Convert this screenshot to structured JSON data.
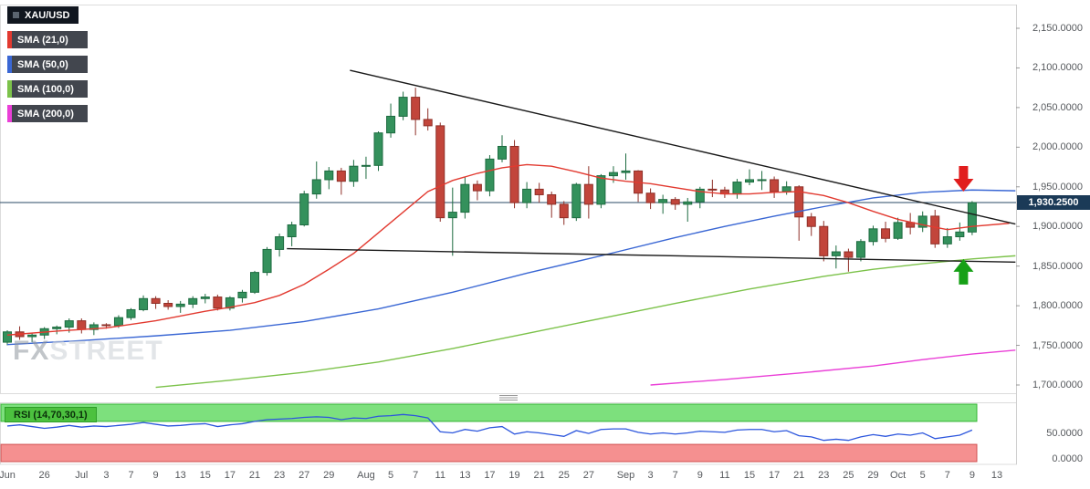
{
  "instrument": {
    "symbol": "XAU/USD"
  },
  "watermark": {
    "part1": "FX",
    "part2": "STREET"
  },
  "price_badge": {
    "value": "1,930.2500",
    "color": "#1b3a57"
  },
  "chart_data": {
    "type": "candlestick",
    "symbol": "XAU/USD",
    "bull_color": "#34915c",
    "bull_border": "#1d6b40",
    "bear_color": "#c2453b",
    "bear_border": "#8e2f27",
    "y_axis": {
      "values": [
        2150,
        2100,
        2050,
        2000,
        1950,
        1900,
        1850,
        1800,
        1750,
        1700
      ],
      "labels": [
        "2,150.0000",
        "2,100.0000",
        "2,050.0000",
        "2,000.0000",
        "1,950.0000",
        "1,900.0000",
        "1,850.0000",
        "1,800.0000",
        "1,750.0000",
        "1,700.0000"
      ]
    },
    "x_ticks": [
      [
        0,
        "Jun"
      ],
      [
        3,
        "26"
      ],
      [
        6,
        "Jul"
      ],
      [
        8,
        "3"
      ],
      [
        10,
        "7"
      ],
      [
        12,
        "9"
      ],
      [
        14,
        "13"
      ],
      [
        16,
        "15"
      ],
      [
        18,
        "17"
      ],
      [
        20,
        "21"
      ],
      [
        22,
        "23"
      ],
      [
        24,
        "27"
      ],
      [
        26,
        "29"
      ],
      [
        29,
        "Aug"
      ],
      [
        31,
        "5"
      ],
      [
        33,
        "7"
      ],
      [
        35,
        "11"
      ],
      [
        37,
        "13"
      ],
      [
        39,
        "17"
      ],
      [
        41,
        "19"
      ],
      [
        43,
        "21"
      ],
      [
        45,
        "25"
      ],
      [
        47,
        "27"
      ],
      [
        50,
        "Sep"
      ],
      [
        52,
        "3"
      ],
      [
        54,
        "7"
      ],
      [
        56,
        "9"
      ],
      [
        58,
        "11"
      ],
      [
        60,
        "15"
      ],
      [
        62,
        "17"
      ],
      [
        64,
        "21"
      ],
      [
        66,
        "23"
      ],
      [
        68,
        "25"
      ],
      [
        70,
        "29"
      ],
      [
        72,
        "Oct"
      ],
      [
        74,
        "5"
      ],
      [
        76,
        "7"
      ],
      [
        78,
        "9"
      ],
      [
        80,
        "13"
      ]
    ],
    "candles": [
      [
        "Jun 23",
        1754,
        1769,
        1750,
        1767
      ],
      [
        "Jun 24",
        1767,
        1774,
        1757,
        1761
      ],
      [
        "Jun 25",
        1761,
        1766,
        1754,
        1763
      ],
      [
        "Jun 26",
        1763,
        1773,
        1758,
        1771
      ],
      [
        "Jun 29",
        1771,
        1775,
        1764,
        1773
      ],
      [
        "Jun 30",
        1773,
        1784,
        1766,
        1781
      ],
      [
        "Jul 1",
        1781,
        1784,
        1765,
        1770
      ],
      [
        "Jul 2",
        1770,
        1779,
        1763,
        1776
      ],
      [
        "Jul 3",
        1776,
        1778,
        1771,
        1775
      ],
      [
        "Jul 6",
        1775,
        1788,
        1772,
        1785
      ],
      [
        "Jul 7",
        1785,
        1797,
        1782,
        1795
      ],
      [
        "Jul 8",
        1795,
        1813,
        1793,
        1809
      ],
      [
        "Jul 9",
        1809,
        1812,
        1796,
        1803
      ],
      [
        "Jul 10",
        1803,
        1807,
        1795,
        1799
      ],
      [
        "Jul 13",
        1799,
        1806,
        1791,
        1802
      ],
      [
        "Jul 14",
        1802,
        1812,
        1797,
        1809
      ],
      [
        "Jul 15",
        1809,
        1815,
        1803,
        1811
      ],
      [
        "Jul 16",
        1811,
        1814,
        1794,
        1797
      ],
      [
        "Jul 17",
        1797,
        1812,
        1794,
        1810
      ],
      [
        "Jul 20",
        1810,
        1820,
        1804,
        1817
      ],
      [
        "Jul 21",
        1817,
        1844,
        1815,
        1842
      ],
      [
        "Jul 22",
        1842,
        1874,
        1838,
        1871
      ],
      [
        "Jul 23",
        1871,
        1891,
        1862,
        1887
      ],
      [
        "Jul 24",
        1887,
        1906,
        1875,
        1902
      ],
      [
        "Jul 27",
        1902,
        1945,
        1900,
        1941
      ],
      [
        "Jul 28",
        1941,
        1982,
        1935,
        1959
      ],
      [
        "Jul 29",
        1959,
        1975,
        1947,
        1970
      ],
      [
        "Jul 30",
        1970,
        1974,
        1940,
        1957
      ],
      [
        "Jul 31",
        1957,
        1984,
        1950,
        1976
      ],
      [
        "Aug 3",
        1976,
        1988,
        1960,
        1977
      ],
      [
        "Aug 4",
        1977,
        2020,
        1970,
        2018
      ],
      [
        "Aug 5",
        2018,
        2055,
        2012,
        2039
      ],
      [
        "Aug 6",
        2039,
        2070,
        2034,
        2063
      ],
      [
        "Aug 7",
        2063,
        2075,
        2015,
        2035
      ],
      [
        "Aug 10",
        2035,
        2049,
        2021,
        2027
      ],
      [
        "Aug 11",
        2027,
        2031,
        1906,
        1911
      ],
      [
        "Aug 12",
        1911,
        1949,
        1863,
        1918
      ],
      [
        "Aug 13",
        1918,
        1962,
        1910,
        1953
      ],
      [
        "Aug 14",
        1953,
        1958,
        1933,
        1945
      ],
      [
        "Aug 17",
        1945,
        1990,
        1938,
        1985
      ],
      [
        "Aug 18",
        1985,
        2015,
        1981,
        2001
      ],
      [
        "Aug 19",
        2001,
        2009,
        1923,
        1930
      ],
      [
        "Aug 20",
        1930,
        1956,
        1923,
        1947
      ],
      [
        "Aug 21",
        1947,
        1955,
        1930,
        1940
      ],
      [
        "Aug 24",
        1940,
        1944,
        1911,
        1928
      ],
      [
        "Aug 25",
        1928,
        1932,
        1902,
        1911
      ],
      [
        "Aug 26",
        1911,
        1955,
        1907,
        1953
      ],
      [
        "Aug 27",
        1953,
        1976,
        1910,
        1928
      ],
      [
        "Aug 28",
        1928,
        1966,
        1923,
        1964
      ],
      [
        "Aug 31",
        1964,
        1976,
        1955,
        1968
      ],
      [
        "Sep 1",
        1968,
        1992,
        1959,
        1970
      ],
      [
        "Sep 2",
        1970,
        1971,
        1931,
        1942
      ],
      [
        "Sep 3",
        1942,
        1948,
        1922,
        1930
      ],
      [
        "Sep 4",
        1930,
        1940,
        1916,
        1934
      ],
      [
        "Sep 7",
        1934,
        1937,
        1921,
        1928
      ],
      [
        "Sep 8",
        1928,
        1936,
        1906,
        1931
      ],
      [
        "Sep 9",
        1931,
        1950,
        1923,
        1947
      ],
      [
        "Sep 10",
        1947,
        1959,
        1937,
        1946
      ],
      [
        "Sep 11",
        1946,
        1950,
        1936,
        1941
      ],
      [
        "Sep 14",
        1941,
        1960,
        1935,
        1956
      ],
      [
        "Sep 15",
        1956,
        1972,
        1952,
        1959
      ],
      [
        "Sep 16",
        1959,
        1970,
        1946,
        1959
      ],
      [
        "Sep 17",
        1959,
        1963,
        1936,
        1944
      ],
      [
        "Sep 18",
        1944,
        1957,
        1940,
        1950
      ],
      [
        "Sep 21",
        1950,
        1952,
        1882,
        1912
      ],
      [
        "Sep 22",
        1912,
        1917,
        1888,
        1900
      ],
      [
        "Sep 23",
        1900,
        1907,
        1856,
        1863
      ],
      [
        "Sep 24",
        1863,
        1876,
        1847,
        1868
      ],
      [
        "Sep 25",
        1868,
        1872,
        1843,
        1861
      ],
      [
        "Sep 28",
        1861,
        1884,
        1856,
        1881
      ],
      [
        "Sep 29",
        1881,
        1901,
        1876,
        1897
      ],
      [
        "Sep 30",
        1897,
        1906,
        1880,
        1885
      ],
      [
        "Oct 1",
        1885,
        1911,
        1883,
        1905
      ],
      [
        "Oct 2",
        1905,
        1917,
        1890,
        1899
      ],
      [
        "Oct 5",
        1899,
        1919,
        1893,
        1913
      ],
      [
        "Oct 6",
        1913,
        1921,
        1873,
        1878
      ],
      [
        "Oct 7",
        1878,
        1898,
        1873,
        1887
      ],
      [
        "Oct 8",
        1887,
        1905,
        1882,
        1893
      ],
      [
        "Oct 9",
        1893,
        1932,
        1889,
        1930
      ]
    ],
    "sma21": {
      "name": "SMA (21,0)",
      "color": "#e23a30",
      "points": [
        [
          0,
          1763
        ],
        [
          4,
          1768
        ],
        [
          8,
          1772
        ],
        [
          12,
          1781
        ],
        [
          16,
          1793
        ],
        [
          18,
          1798
        ],
        [
          20,
          1804
        ],
        [
          22,
          1813
        ],
        [
          24,
          1827
        ],
        [
          26,
          1846
        ],
        [
          28,
          1866
        ],
        [
          30,
          1892
        ],
        [
          32,
          1918
        ],
        [
          34,
          1944
        ],
        [
          36,
          1958
        ],
        [
          38,
          1967
        ],
        [
          40,
          1974
        ],
        [
          42,
          1978
        ],
        [
          44,
          1976
        ],
        [
          46,
          1969
        ],
        [
          48,
          1961
        ],
        [
          50,
          1957
        ],
        [
          52,
          1954
        ],
        [
          54,
          1949
        ],
        [
          56,
          1944
        ],
        [
          58,
          1941
        ],
        [
          60,
          1941
        ],
        [
          62,
          1943
        ],
        [
          64,
          1944
        ],
        [
          66,
          1939
        ],
        [
          68,
          1930
        ],
        [
          70,
          1919
        ],
        [
          72,
          1909
        ],
        [
          74,
          1902
        ],
        [
          76,
          1896
        ],
        [
          78,
          1900
        ],
        [
          81,
          1904
        ]
      ]
    },
    "sma50": {
      "name": "SMA (50,0)",
      "color": "#3a67d4",
      "points": [
        [
          0,
          1751
        ],
        [
          6,
          1756
        ],
        [
          12,
          1762
        ],
        [
          18,
          1769
        ],
        [
          24,
          1780
        ],
        [
          30,
          1796
        ],
        [
          36,
          1817
        ],
        [
          42,
          1841
        ],
        [
          48,
          1863
        ],
        [
          54,
          1886
        ],
        [
          58,
          1900
        ],
        [
          62,
          1913
        ],
        [
          66,
          1925
        ],
        [
          70,
          1936
        ],
        [
          74,
          1943
        ],
        [
          78,
          1946
        ],
        [
          81.5,
          1945
        ]
      ]
    },
    "sma100": {
      "name": "SMA (100,0)",
      "color": "#7cc24a",
      "points": [
        [
          12,
          1697
        ],
        [
          18,
          1706
        ],
        [
          24,
          1716
        ],
        [
          30,
          1729
        ],
        [
          36,
          1746
        ],
        [
          42,
          1765
        ],
        [
          48,
          1784
        ],
        [
          54,
          1803
        ],
        [
          60,
          1821
        ],
        [
          66,
          1837
        ],
        [
          70,
          1846
        ],
        [
          74,
          1853
        ],
        [
          78,
          1859
        ],
        [
          81.5,
          1863
        ]
      ]
    },
    "sma200": {
      "name": "SMA (200,0)",
      "color": "#ea3fd7",
      "points": [
        [
          52,
          1700
        ],
        [
          58,
          1707
        ],
        [
          64,
          1715
        ],
        [
          70,
          1724
        ],
        [
          74,
          1732
        ],
        [
          78,
          1739
        ],
        [
          81.5,
          1744
        ]
      ]
    },
    "horizontal_line": {
      "price": 1930.25,
      "color": "#2a4a66"
    },
    "trendlines": [
      {
        "i1": 27.7,
        "p1": 2097,
        "i2": 81.5,
        "p2": 1903
      },
      {
        "i1": 22.6,
        "p1": 1872,
        "i2": 81.5,
        "p2": 1855
      }
    ],
    "annotations": {
      "sell_arrow": {
        "i": 77.3,
        "tip_price": 1944,
        "direction": "down",
        "color": "#e11d1d"
      },
      "buy_arrow": {
        "i": 77.3,
        "tip_price": 1859,
        "direction": "up",
        "color": "#16a016"
      }
    },
    "rsi": {
      "label": "RSI (14,70,30,1)",
      "label_bg": "#4cc13f",
      "line_color": "#2c56dd",
      "upper_band": [
        70,
        100
      ],
      "lower_band": [
        0,
        30
      ],
      "upper_color": "#7de07d",
      "lower_color": "#f59090",
      "axis_labels": [
        {
          "value": 50,
          "label": "50.0000"
        },
        {
          "value": 0,
          "label": "0.0000"
        }
      ],
      "points": [
        [
          0,
          62
        ],
        [
          1,
          64
        ],
        [
          2,
          61
        ],
        [
          3,
          58
        ],
        [
          4,
          60
        ],
        [
          5,
          63
        ],
        [
          6,
          60
        ],
        [
          7,
          62
        ],
        [
          8,
          61
        ],
        [
          9,
          63
        ],
        [
          10,
          65
        ],
        [
          11,
          68
        ],
        [
          12,
          65
        ],
        [
          13,
          62
        ],
        [
          14,
          63
        ],
        [
          15,
          65
        ],
        [
          16,
          66
        ],
        [
          17,
          61
        ],
        [
          18,
          64
        ],
        [
          19,
          66
        ],
        [
          20,
          70
        ],
        [
          21,
          73
        ],
        [
          22,
          74
        ],
        [
          23,
          75
        ],
        [
          24,
          77
        ],
        [
          25,
          78
        ],
        [
          26,
          77
        ],
        [
          27,
          73
        ],
        [
          28,
          76
        ],
        [
          29,
          75
        ],
        [
          30,
          79
        ],
        [
          31,
          80
        ],
        [
          32,
          82
        ],
        [
          33,
          80
        ],
        [
          34,
          76
        ],
        [
          35,
          52
        ],
        [
          36,
          50
        ],
        [
          37,
          56
        ],
        [
          38,
          53
        ],
        [
          39,
          59
        ],
        [
          40,
          61
        ],
        [
          41,
          48
        ],
        [
          42,
          52
        ],
        [
          43,
          50
        ],
        [
          44,
          47
        ],
        [
          45,
          44
        ],
        [
          46,
          54
        ],
        [
          47,
          49
        ],
        [
          48,
          56
        ],
        [
          49,
          57
        ],
        [
          50,
          57
        ],
        [
          51,
          51
        ],
        [
          52,
          48
        ],
        [
          53,
          50
        ],
        [
          54,
          48
        ],
        [
          55,
          50
        ],
        [
          56,
          53
        ],
        [
          57,
          52
        ],
        [
          58,
          51
        ],
        [
          59,
          55
        ],
        [
          60,
          56
        ],
        [
          61,
          56
        ],
        [
          62,
          52
        ],
        [
          63,
          54
        ],
        [
          64,
          45
        ],
        [
          65,
          43
        ],
        [
          66,
          37
        ],
        [
          67,
          39
        ],
        [
          68,
          37
        ],
        [
          69,
          43
        ],
        [
          70,
          47
        ],
        [
          71,
          44
        ],
        [
          72,
          48
        ],
        [
          73,
          46
        ],
        [
          74,
          50
        ],
        [
          75,
          40
        ],
        [
          76,
          43
        ],
        [
          77,
          46
        ],
        [
          78,
          55
        ]
      ]
    }
  }
}
